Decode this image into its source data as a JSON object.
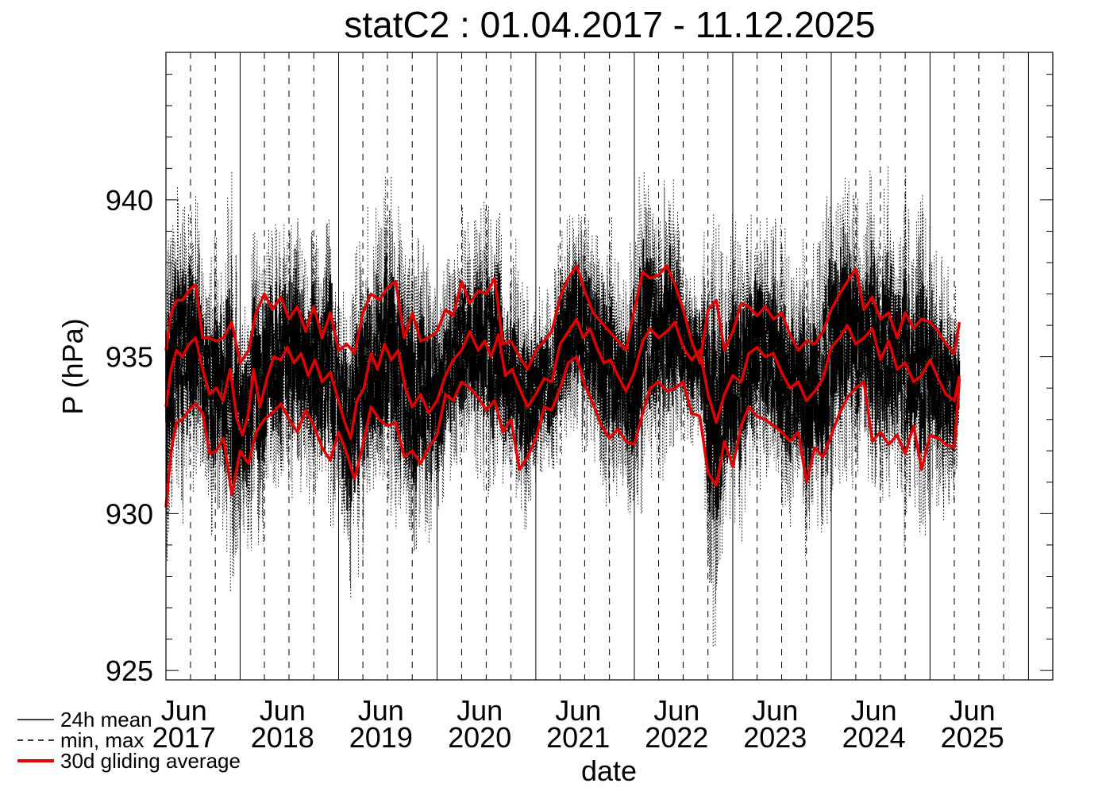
{
  "chart_data": {
    "type": "line",
    "title": "statC2 : 01.04.2017 - 11.12.2025",
    "xlabel": "date",
    "ylabel": "P (hPa)",
    "ylim": [
      924.7,
      944.7
    ],
    "xlim": [
      "2017-04-01",
      "2026-04-01"
    ],
    "yticks": [
      925,
      930,
      935,
      940
    ],
    "xticks": [
      {
        "month": "Jun",
        "year": "2017",
        "date": "2017-06-01"
      },
      {
        "month": "Jun",
        "year": "2018",
        "date": "2018-06-01"
      },
      {
        "month": "Jun",
        "year": "2019",
        "date": "2019-06-01"
      },
      {
        "month": "Jun",
        "year": "2020",
        "date": "2020-06-01"
      },
      {
        "month": "Jun",
        "year": "2021",
        "date": "2021-06-01"
      },
      {
        "month": "Jun",
        "year": "2022",
        "date": "2022-06-01"
      },
      {
        "month": "Jun",
        "year": "2023",
        "date": "2023-06-01"
      },
      {
        "month": "Jun",
        "year": "2024",
        "date": "2024-06-01"
      },
      {
        "month": "Jun",
        "year": "2025",
        "date": "2025-06-01"
      }
    ],
    "year_boundaries": [
      "2018-01-01",
      "2019-01-01",
      "2020-01-01",
      "2021-01-01",
      "2022-01-01",
      "2023-01-01",
      "2024-01-01",
      "2025-01-01",
      "2026-01-01"
    ],
    "quarter_markers": [
      "2017-04-01",
      "2017-07-01",
      "2017-10-01",
      "2018-04-01",
      "2018-07-01",
      "2018-10-01",
      "2019-04-01",
      "2019-07-01",
      "2019-10-01",
      "2020-04-01",
      "2020-07-01",
      "2020-10-01",
      "2021-04-01",
      "2021-07-01",
      "2021-10-01",
      "2022-04-01",
      "2022-07-01",
      "2022-10-01",
      "2023-04-01",
      "2023-07-01",
      "2023-10-01",
      "2024-04-01",
      "2024-07-01",
      "2024-10-01",
      "2025-04-01",
      "2025-07-01",
      "2025-10-01"
    ],
    "legend": {
      "placement": "bottom-left",
      "entries": [
        {
          "label": "24h mean",
          "style": "solid",
          "color": "#000000"
        },
        {
          "label": "min, max",
          "style": "dashed",
          "color": "#000000"
        },
        {
          "label": "30d gliding average",
          "style": "solid-thick",
          "color": "#e00000"
        }
      ]
    },
    "series": [
      {
        "name": "30d gliding average",
        "key": "avg",
        "color": "#e00000",
        "x": [
          "2017-04-01",
          "2017-04-20",
          "2017-05-10",
          "2017-06-01",
          "2017-06-25",
          "2017-07-20",
          "2017-08-15",
          "2017-09-10",
          "2017-10-05",
          "2017-10-30",
          "2017-11-25",
          "2017-12-20",
          "2018-01-10",
          "2018-02-01",
          "2018-02-20",
          "2018-03-15",
          "2018-04-10",
          "2018-05-05",
          "2018-06-01",
          "2018-06-25",
          "2018-07-20",
          "2018-08-15",
          "2018-09-10",
          "2018-10-05",
          "2018-11-01",
          "2018-12-01",
          "2018-12-25",
          "2019-01-20",
          "2019-02-15",
          "2019-03-10",
          "2019-04-05",
          "2019-05-01",
          "2019-05-25",
          "2019-06-20",
          "2019-07-15",
          "2019-08-10",
          "2019-09-05",
          "2019-10-01",
          "2019-11-01",
          "2019-12-01",
          "2020-01-01",
          "2020-02-01",
          "2020-03-01",
          "2020-04-01",
          "2020-05-01",
          "2020-06-01",
          "2020-06-25",
          "2020-07-20",
          "2020-08-15",
          "2020-09-10",
          "2020-10-05",
          "2020-11-01",
          "2020-12-01",
          "2021-01-01",
          "2021-02-01",
          "2021-03-01",
          "2021-04-01",
          "2021-05-01",
          "2021-06-01",
          "2021-06-25",
          "2021-07-20",
          "2021-08-15",
          "2021-09-10",
          "2021-10-05",
          "2021-11-01",
          "2021-12-01",
          "2022-01-01",
          "2022-02-01",
          "2022-03-01",
          "2022-04-01",
          "2022-05-01",
          "2022-06-01",
          "2022-07-01",
          "2022-08-01",
          "2022-09-01",
          "2022-10-01",
          "2022-11-01",
          "2022-12-01",
          "2023-01-01",
          "2023-02-01",
          "2023-03-01",
          "2023-04-01",
          "2023-05-01",
          "2023-06-01",
          "2023-07-01",
          "2023-08-01",
          "2023-09-01",
          "2023-10-01",
          "2023-11-01",
          "2023-12-01",
          "2024-01-01",
          "2024-02-01",
          "2024-03-01",
          "2024-04-01",
          "2024-05-01",
          "2024-06-01",
          "2024-07-01",
          "2024-08-01",
          "2024-09-01",
          "2024-10-01",
          "2024-11-01",
          "2024-12-01",
          "2025-01-01",
          "2025-02-01",
          "2025-03-01",
          "2025-04-01",
          "2025-04-20"
        ],
        "y": [
          933.4,
          934.6,
          935.2,
          935.0,
          935.4,
          935.6,
          934.6,
          933.8,
          934.0,
          933.6,
          934.6,
          933.0,
          932.5,
          933.2,
          934.6,
          933.4,
          934.3,
          935.0,
          934.9,
          935.3,
          934.8,
          935.1,
          934.4,
          934.9,
          934.2,
          934.5,
          933.8,
          933.0,
          932.4,
          933.6,
          934.0,
          935.1,
          934.6,
          935.4,
          934.9,
          935.2,
          934.0,
          933.4,
          933.8,
          933.2,
          933.6,
          934.4,
          934.9,
          935.2,
          935.8,
          935.2,
          935.5,
          935.0,
          935.7,
          934.4,
          934.6,
          934.0,
          933.4,
          933.8,
          934.3,
          934.2,
          935.4,
          935.8,
          936.2,
          935.6,
          935.9,
          935.3,
          934.8,
          934.9,
          934.4,
          933.9,
          934.5,
          935.5,
          935.9,
          935.6,
          935.8,
          936.1,
          935.3,
          934.9,
          935.2,
          933.8,
          932.9,
          933.8,
          934.4,
          934.2,
          935.1,
          935.3,
          935.0,
          935.1,
          934.5,
          934.0,
          934.2,
          933.6,
          933.9,
          934.3,
          935.3,
          935.6,
          936.0,
          935.4,
          935.6,
          935.9,
          934.9,
          935.5,
          934.6,
          934.8,
          934.2,
          934.4,
          934.9,
          934.3,
          933.8,
          933.6,
          934.4
        ]
      },
      {
        "name": "30d gliding average (upper)",
        "key": "upper",
        "color": "#e00000",
        "x": [
          "2017-04-01",
          "2017-04-20",
          "2017-05-10",
          "2017-06-01",
          "2017-06-25",
          "2017-07-20",
          "2017-08-15",
          "2017-09-10",
          "2017-10-05",
          "2017-11-01",
          "2017-12-01",
          "2018-01-01",
          "2018-02-01",
          "2018-03-01",
          "2018-04-01",
          "2018-05-01",
          "2018-06-01",
          "2018-07-01",
          "2018-08-01",
          "2018-09-01",
          "2018-10-01",
          "2018-11-01",
          "2018-12-01",
          "2019-01-01",
          "2019-02-01",
          "2019-03-01",
          "2019-04-01",
          "2019-05-01",
          "2019-06-01",
          "2019-07-01",
          "2019-08-01",
          "2019-09-01",
          "2019-10-01",
          "2019-11-01",
          "2019-12-01",
          "2020-01-01",
          "2020-02-01",
          "2020-03-01",
          "2020-04-01",
          "2020-05-01",
          "2020-06-01",
          "2020-07-01",
          "2020-08-01",
          "2020-09-01",
          "2020-10-01",
          "2020-11-01",
          "2020-12-01",
          "2021-01-01",
          "2021-02-01",
          "2021-03-01",
          "2021-04-01",
          "2021-05-01",
          "2021-06-01",
          "2021-07-01",
          "2021-08-01",
          "2021-09-01",
          "2021-10-01",
          "2021-11-01",
          "2021-12-01",
          "2022-01-01",
          "2022-02-01",
          "2022-03-01",
          "2022-04-01",
          "2022-05-01",
          "2022-06-01",
          "2022-07-01",
          "2022-08-01",
          "2022-09-01",
          "2022-10-01",
          "2022-11-01",
          "2022-12-01",
          "2023-01-01",
          "2023-02-01",
          "2023-03-01",
          "2023-04-01",
          "2023-05-01",
          "2023-06-01",
          "2023-07-01",
          "2023-08-01",
          "2023-09-01",
          "2023-10-01",
          "2023-11-01",
          "2023-12-01",
          "2024-01-01",
          "2024-02-01",
          "2024-03-01",
          "2024-04-01",
          "2024-05-01",
          "2024-06-01",
          "2024-07-01",
          "2024-08-01",
          "2024-09-01",
          "2024-10-01",
          "2024-11-01",
          "2024-12-01",
          "2025-01-01",
          "2025-02-01",
          "2025-03-01",
          "2025-04-01",
          "2025-04-20"
        ],
        "y": [
          935.2,
          936.4,
          936.8,
          936.8,
          937.1,
          937.3,
          935.6,
          935.6,
          935.5,
          935.6,
          936.1,
          934.8,
          935.2,
          936.4,
          937.0,
          936.5,
          936.9,
          936.2,
          936.6,
          935.8,
          936.6,
          935.6,
          936.4,
          935.2,
          935.4,
          935.1,
          936.4,
          937.0,
          936.8,
          937.2,
          937.4,
          935.6,
          936.4,
          935.5,
          935.6,
          935.8,
          936.5,
          936.3,
          937.4,
          936.7,
          937.1,
          937.0,
          937.5,
          935.4,
          935.5,
          935.0,
          934.6,
          935.2,
          935.5,
          935.8,
          936.9,
          937.5,
          937.9,
          937.1,
          936.4,
          936.1,
          935.8,
          935.5,
          935.2,
          936.5,
          937.7,
          937.5,
          937.6,
          937.9,
          937.3,
          936.5,
          935.5,
          934.8,
          936.5,
          936.8,
          935.2,
          935.8,
          936.7,
          936.6,
          936.3,
          936.6,
          936.2,
          936.4,
          935.7,
          935.2,
          935.5,
          935.4,
          935.8,
          936.5,
          937.0,
          937.4,
          937.8,
          936.5,
          936.9,
          936.2,
          936.4,
          935.6,
          936.4,
          935.9,
          936.2,
          936.1,
          935.8,
          935.4,
          935.1,
          936.1
        ]
      },
      {
        "name": "30d gliding average (lower)",
        "key": "lower",
        "color": "#e00000",
        "x": [
          "2017-04-01",
          "2017-04-20",
          "2017-05-10",
          "2017-06-01",
          "2017-06-25",
          "2017-07-20",
          "2017-08-15",
          "2017-09-10",
          "2017-10-05",
          "2017-11-01",
          "2017-12-01",
          "2018-01-01",
          "2018-02-01",
          "2018-03-01",
          "2018-04-01",
          "2018-05-01",
          "2018-06-01",
          "2018-07-01",
          "2018-08-01",
          "2018-09-01",
          "2018-10-01",
          "2018-11-01",
          "2018-12-01",
          "2019-01-01",
          "2019-02-01",
          "2019-03-01",
          "2019-04-01",
          "2019-05-01",
          "2019-06-01",
          "2019-07-01",
          "2019-08-01",
          "2019-09-01",
          "2019-10-01",
          "2019-11-01",
          "2019-12-01",
          "2020-01-01",
          "2020-02-01",
          "2020-03-01",
          "2020-04-01",
          "2020-05-01",
          "2020-06-01",
          "2020-07-01",
          "2020-08-01",
          "2020-09-01",
          "2020-10-01",
          "2020-11-01",
          "2020-12-01",
          "2021-01-01",
          "2021-02-01",
          "2021-03-01",
          "2021-04-01",
          "2021-05-01",
          "2021-06-01",
          "2021-07-01",
          "2021-08-01",
          "2021-09-01",
          "2021-10-01",
          "2021-11-01",
          "2021-12-01",
          "2022-01-01",
          "2022-02-01",
          "2022-03-01",
          "2022-04-01",
          "2022-05-01",
          "2022-06-01",
          "2022-07-01",
          "2022-08-01",
          "2022-09-01",
          "2022-10-01",
          "2022-11-01",
          "2022-12-01",
          "2023-01-01",
          "2023-02-01",
          "2023-03-01",
          "2023-04-01",
          "2023-05-01",
          "2023-06-01",
          "2023-07-01",
          "2023-08-01",
          "2023-09-01",
          "2023-10-01",
          "2023-11-01",
          "2023-12-01",
          "2024-01-01",
          "2024-02-01",
          "2024-03-01",
          "2024-04-01",
          "2024-05-01",
          "2024-06-01",
          "2024-07-01",
          "2024-08-01",
          "2024-09-01",
          "2024-10-01",
          "2024-11-01",
          "2024-12-01",
          "2025-01-01",
          "2025-02-01",
          "2025-03-01",
          "2025-04-01",
          "2025-04-20"
        ],
        "y": [
          930.2,
          932.0,
          932.9,
          933.0,
          933.3,
          933.5,
          933.2,
          931.9,
          932.0,
          932.4,
          930.6,
          932.0,
          931.6,
          932.6,
          933.0,
          933.2,
          933.5,
          933.0,
          932.6,
          933.3,
          932.8,
          932.1,
          931.7,
          932.6,
          931.9,
          931.1,
          932.2,
          933.4,
          933.0,
          932.8,
          932.9,
          931.8,
          932.0,
          931.6,
          932.1,
          932.5,
          933.8,
          933.6,
          934.2,
          934.0,
          933.7,
          933.3,
          933.6,
          932.6,
          933.0,
          931.4,
          931.8,
          932.4,
          933.4,
          933.3,
          934.0,
          934.8,
          935.0,
          934.1,
          933.5,
          932.8,
          932.4,
          932.7,
          932.3,
          932.2,
          933.2,
          934.0,
          934.2,
          933.9,
          934.0,
          934.2,
          933.2,
          933.1,
          931.3,
          930.9,
          932.3,
          931.5,
          932.8,
          933.4,
          933.1,
          933.0,
          932.8,
          932.6,
          932.3,
          932.6,
          931.0,
          932.1,
          931.8,
          932.5,
          933.2,
          933.7,
          934.0,
          934.2,
          932.3,
          932.6,
          932.2,
          932.5,
          931.9,
          932.8,
          931.4,
          932.5,
          932.4,
          932.2,
          932.1,
          934.3
        ]
      }
    ]
  }
}
